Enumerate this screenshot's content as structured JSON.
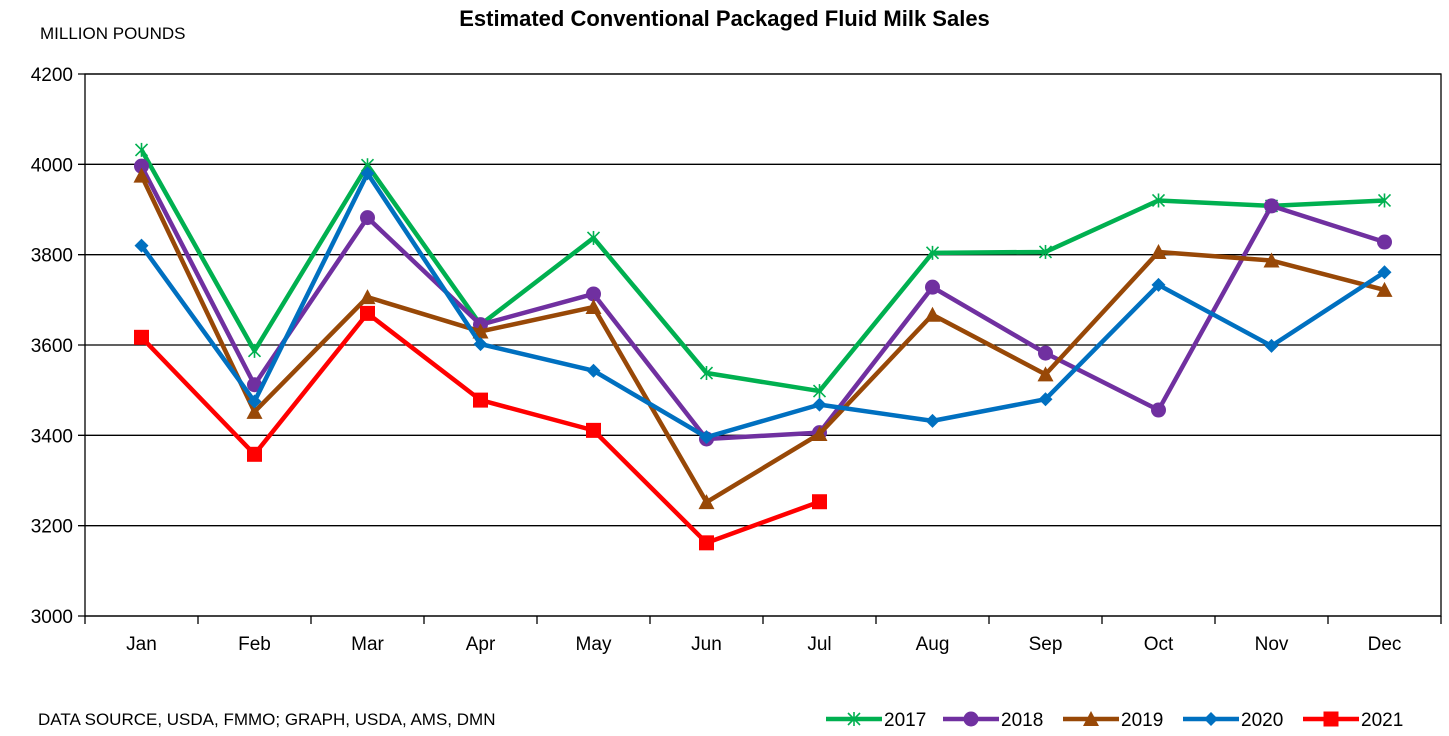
{
  "chart_data": {
    "type": "line",
    "title": "Estimated Conventional Packaged Fluid Milk Sales",
    "ylabel": "MILLION POUNDS",
    "xlabel": "",
    "source": "DATA SOURCE, USDA, FMMO; GRAPH, USDA, AMS, DMN",
    "ylim": [
      3000,
      4200
    ],
    "yticks": [
      "3000",
      "3200",
      "3400",
      "3600",
      "3800",
      "4000",
      "4200"
    ],
    "categories": [
      "Jan",
      "Feb",
      "Mar",
      "Apr",
      "May",
      "Jun",
      "Jul",
      "Aug",
      "Sep",
      "Oct",
      "Nov",
      "Dec"
    ],
    "grid": true,
    "legend_position": "bottom-right",
    "series": [
      {
        "name": "2017",
        "color": "#00B050",
        "marker": "star",
        "values": [
          4032,
          3587,
          3998,
          3645,
          3837,
          3538,
          3498,
          3804,
          3806,
          3920,
          3908,
          3920
        ]
      },
      {
        "name": "2018",
        "color": "#7030A0",
        "marker": "circle",
        "values": [
          3996,
          3512,
          3882,
          3645,
          3713,
          3392,
          3406,
          3728,
          3582,
          3456,
          3908,
          3828
        ]
      },
      {
        "name": "2019",
        "color": "#984807",
        "marker": "triangle",
        "values": [
          3975,
          3452,
          3706,
          3630,
          3684,
          3252,
          3403,
          3667,
          3535,
          3806,
          3787,
          3722
        ]
      },
      {
        "name": "2020",
        "color": "#0070C0",
        "marker": "diamond",
        "values": [
          3820,
          3475,
          3980,
          3602,
          3543,
          3396,
          3468,
          3432,
          3480,
          3733,
          3598,
          3761
        ]
      },
      {
        "name": "2021",
        "color": "#FF0000",
        "marker": "square",
        "values": [
          3617,
          3358,
          3670,
          3478,
          3411,
          3162,
          3253,
          null,
          null,
          null,
          null,
          null
        ]
      }
    ]
  }
}
